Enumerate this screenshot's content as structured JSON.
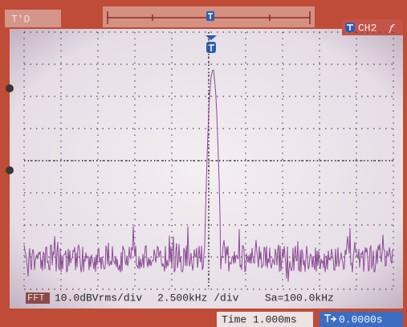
{
  "top": {
    "mode": "T'D",
    "channel": "CH2",
    "trigger_edge": "ƒ"
  },
  "status": {
    "source": "FFT",
    "scale": "10.0dBVrms/div",
    "span": "2.500kHz /div",
    "rate": "Sa=100.0kHz"
  },
  "footer": {
    "time": "Time 1.000ms",
    "trigger_pos": "0.0000s"
  }
}
